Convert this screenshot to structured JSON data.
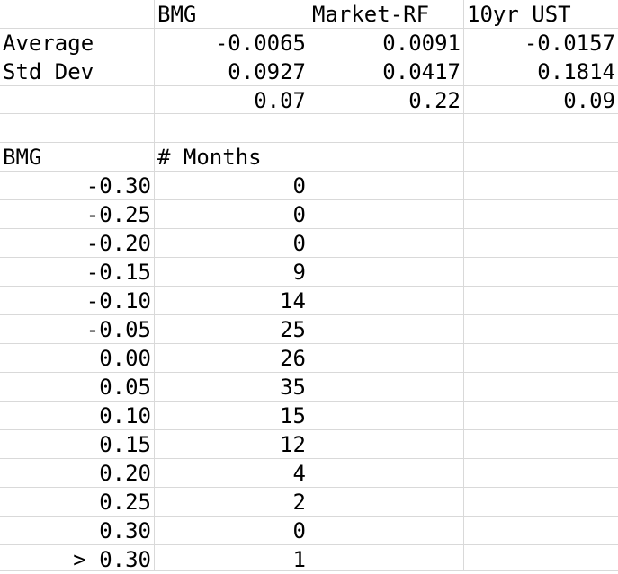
{
  "headers": [
    "",
    "BMG",
    "Market-RF",
    "10yr UST"
  ],
  "stats": [
    {
      "label": "Average",
      "values": [
        "-0.0065",
        "0.0091",
        "-0.0157"
      ]
    },
    {
      "label": "Std Dev",
      "values": [
        "0.0927",
        "0.0417",
        "0.1814"
      ]
    },
    {
      "label": "",
      "values": [
        "0.07",
        "0.22",
        "0.09"
      ]
    }
  ],
  "histogram": {
    "bin_header": "BMG",
    "count_header": "# Months",
    "rows": [
      {
        "bin": "-0.30",
        "count": "0"
      },
      {
        "bin": "-0.25",
        "count": "0"
      },
      {
        "bin": "-0.20",
        "count": "0"
      },
      {
        "bin": "-0.15",
        "count": "9"
      },
      {
        "bin": "-0.10",
        "count": "14"
      },
      {
        "bin": "-0.05",
        "count": "25"
      },
      {
        "bin": "0.00",
        "count": "26"
      },
      {
        "bin": "0.05",
        "count": "35"
      },
      {
        "bin": "0.10",
        "count": "15"
      },
      {
        "bin": "0.15",
        "count": "12"
      },
      {
        "bin": "0.20",
        "count": "4"
      },
      {
        "bin": "0.25",
        "count": "2"
      },
      {
        "bin": "0.30",
        "count": "0"
      },
      {
        "bin": "> 0.30",
        "count": "1"
      }
    ]
  }
}
